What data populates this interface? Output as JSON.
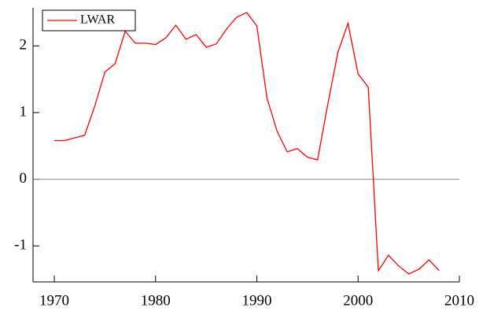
{
  "chart_data": {
    "type": "line",
    "x": [
      1970,
      1971,
      1972,
      1973,
      1974,
      1975,
      1976,
      1977,
      1978,
      1979,
      1980,
      1981,
      1982,
      1983,
      1984,
      1985,
      1986,
      1987,
      1988,
      1989,
      1990,
      1991,
      1992,
      1993,
      1994,
      1995,
      1996,
      1997,
      1998,
      1999,
      2000,
      2001,
      2002,
      2003,
      2004,
      2005,
      2006,
      2007,
      2008
    ],
    "series": [
      {
        "name": "LWAR",
        "color": "#ff0000",
        "values": [
          0.58,
          0.58,
          0.62,
          0.66,
          1.1,
          1.61,
          1.73,
          2.22,
          2.04,
          2.04,
          2.02,
          2.12,
          2.31,
          2.1,
          2.17,
          1.98,
          2.03,
          2.25,
          2.43,
          2.5,
          2.3,
          1.22,
          0.72,
          0.41,
          0.46,
          0.33,
          0.29,
          1.12,
          1.9,
          2.34,
          1.58,
          1.38,
          -1.37,
          -1.14,
          -1.3,
          -1.42,
          -1.35,
          -1.21,
          -1.37
        ]
      }
    ],
    "xlim": [
      1967.9,
      2010
    ],
    "xticks": [
      1970,
      1980,
      1990,
      2000,
      2010
    ],
    "ylim": [
      -1.54,
      2.57
    ],
    "yticks": [
      -1,
      0,
      1,
      2
    ],
    "zero_line": true,
    "legend": "top-left"
  }
}
